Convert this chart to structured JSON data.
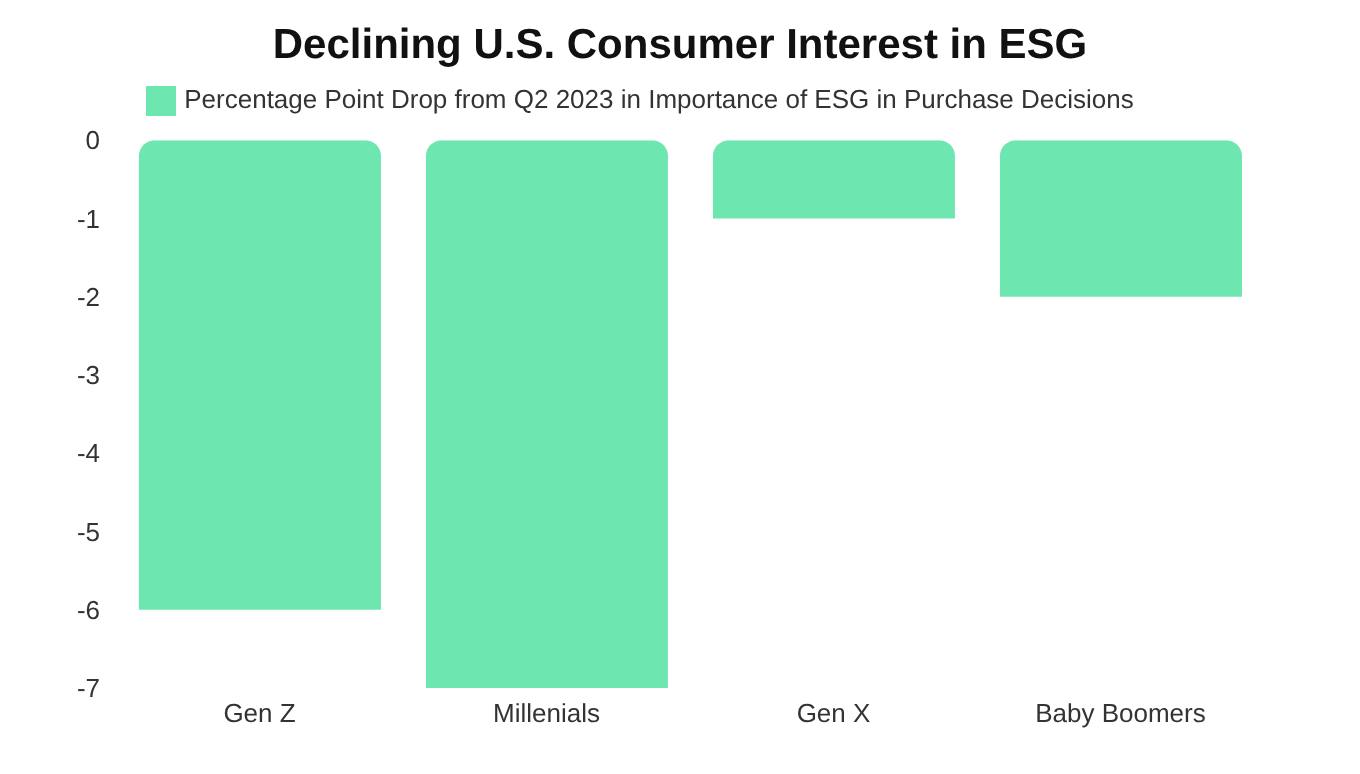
{
  "chart_data": {
    "type": "bar",
    "title": "Declining U.S. Consumer Interest in ESG",
    "categories": [
      "Gen Z",
      "Millenials",
      "Gen X",
      "Baby Boomers"
    ],
    "series": [
      {
        "name": "Percentage Point Drop from Q2 2023 in Importance of ESG in Purchase Decisions",
        "color": "#6ee6b0",
        "values": [
          -6,
          -7,
          -1,
          -2
        ]
      }
    ],
    "ylim": [
      -7,
      0
    ],
    "yticks": [
      0,
      -1,
      -2,
      -3,
      -4,
      -5,
      -6,
      -7
    ],
    "grid": false,
    "legend": "top"
  }
}
